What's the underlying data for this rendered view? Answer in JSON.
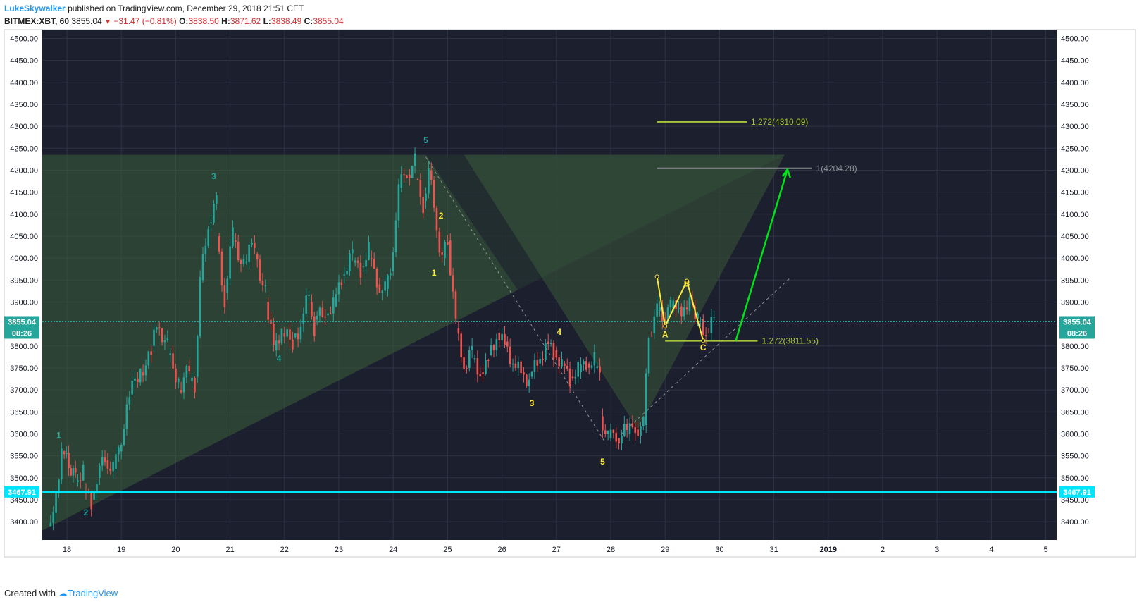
{
  "header": {
    "user": "LukeSkywalker",
    "published": "published on TradingView.com, December 29, 2018 21:51 CET",
    "symbol": "BITMEX:XBT, 60",
    "last": "3855.04",
    "change": "−31.47 (−0.81%)",
    "o_label": "O:",
    "o_value": "3838.50",
    "h_label": "H:",
    "h_value": "3871.62",
    "l_label": "L:",
    "l_value": "3838.49",
    "c_label": "C:",
    "c_value": "3855.04"
  },
  "footer": {
    "created_with": "Created with",
    "brand": "TradingView"
  },
  "colors": {
    "background": "#1c1f2e",
    "grid": "#2e3344",
    "up": "#26a69a",
    "down": "#ef5350",
    "wedge": "#3b5e3a",
    "cyan": "#00e5ff",
    "yellow": "#ffeb3b",
    "green": "#00e21a",
    "fib": "#a8c53a",
    "gray": "#8d9196"
  },
  "chart_data": {
    "type": "candlestick",
    "price_axis": [
      "4500.00",
      "4450.00",
      "4400.00",
      "4350.00",
      "4300.00",
      "4250.00",
      "4200.00",
      "4150.00",
      "4100.00",
      "4050.00",
      "4000.00",
      "3950.00",
      "3900.00",
      "3850.00",
      "3800.00",
      "3750.00",
      "3700.00",
      "3650.00",
      "3600.00",
      "3550.00",
      "3500.00",
      "3450.00",
      "3400.00",
      "3350.00"
    ],
    "ylim": [
      3320,
      4520
    ],
    "time_axis": [
      "18",
      "19",
      "20",
      "21",
      "22",
      "23",
      "24",
      "25",
      "26",
      "27",
      "28",
      "29",
      "30",
      "31",
      "2019",
      "2",
      "3",
      "4",
      "5"
    ],
    "time_axis_bold": [
      "2019"
    ],
    "current_price": {
      "label": "3855.04",
      "value": 3855.04,
      "countdown": "08:26"
    },
    "support_line": {
      "label": "3467.91",
      "value": 3467.91
    },
    "fib_levels": [
      {
        "label": "1.272(4310.09)",
        "value": 4310.09
      },
      {
        "label": "1(4204.28)",
        "value": 4204.28
      },
      {
        "label": "1.272(3811.55)",
        "value": 3811.55
      }
    ],
    "wave_labels_cyan": [
      {
        "text": "1",
        "day": 17.85,
        "price": 3590
      },
      {
        "text": "2",
        "day": 18.35,
        "price": 3415
      },
      {
        "text": "3",
        "day": 20.7,
        "price": 4180
      },
      {
        "text": "4",
        "day": 21.9,
        "price": 3765
      },
      {
        "text": "5",
        "day": 24.6,
        "price": 4262
      }
    ],
    "wave_labels_yellow": [
      {
        "text": "1",
        "day": 24.75,
        "price": 3960
      },
      {
        "text": "2",
        "day": 24.88,
        "price": 4090
      },
      {
        "text": "3",
        "day": 26.55,
        "price": 3663
      },
      {
        "text": "4",
        "day": 27.05,
        "price": 3825
      },
      {
        "text": "5",
        "day": 27.85,
        "price": 3530
      }
    ],
    "abc_labels": [
      {
        "text": "A",
        "day": 29.0,
        "price": 3820
      },
      {
        "text": "B",
        "day": 29.4,
        "price": 3935
      },
      {
        "text": "C",
        "day": 29.7,
        "price": 3790
      }
    ],
    "candles_sampled": [
      [
        17.7,
        3390,
        3405
      ],
      [
        17.8,
        3420,
        3560
      ],
      [
        17.95,
        3560,
        3500
      ],
      [
        18.2,
        3490,
        3520
      ],
      [
        18.35,
        3470,
        3440
      ],
      [
        18.5,
        3450,
        3500
      ],
      [
        18.6,
        3500,
        3550
      ],
      [
        18.75,
        3540,
        3520
      ],
      [
        18.9,
        3520,
        3560
      ],
      [
        19.0,
        3560,
        3680
      ],
      [
        19.2,
        3690,
        3750
      ],
      [
        19.4,
        3740,
        3780
      ],
      [
        19.6,
        3800,
        3860
      ],
      [
        19.75,
        3840,
        3800
      ],
      [
        19.9,
        3780,
        3720
      ],
      [
        20.1,
        3700,
        3750
      ],
      [
        20.3,
        3720,
        3700
      ],
      [
        20.4,
        3730,
        3950
      ],
      [
        20.5,
        3950,
        4080
      ],
      [
        20.65,
        4080,
        4130
      ],
      [
        20.8,
        4050,
        3900
      ],
      [
        20.95,
        3920,
        4060
      ],
      [
        21.1,
        4040,
        3980
      ],
      [
        21.3,
        3990,
        4040
      ],
      [
        21.5,
        4010,
        3920
      ],
      [
        21.7,
        3900,
        3800
      ],
      [
        21.85,
        3790,
        3840
      ],
      [
        22.0,
        3830,
        3810
      ],
      [
        22.2,
        3820,
        3840
      ],
      [
        22.35,
        3850,
        3920
      ],
      [
        22.5,
        3900,
        3840
      ],
      [
        22.6,
        3860,
        3880
      ],
      [
        22.8,
        3870,
        3900
      ],
      [
        22.95,
        3890,
        3950
      ],
      [
        23.1,
        3960,
        4010
      ],
      [
        23.3,
        3990,
        3970
      ],
      [
        23.45,
        3980,
        4020
      ],
      [
        23.6,
        4000,
        3950
      ],
      [
        23.75,
        3940,
        3930
      ],
      [
        23.9,
        3930,
        3960
      ],
      [
        24.0,
        3970,
        4150
      ],
      [
        24.15,
        4160,
        4200
      ],
      [
        24.3,
        4190,
        4220
      ],
      [
        24.45,
        4180,
        4120
      ],
      [
        24.6,
        4130,
        4200
      ],
      [
        24.7,
        4200,
        4080
      ],
      [
        24.85,
        4060,
        4000
      ],
      [
        24.95,
        4000,
        4040
      ],
      [
        25.05,
        4040,
        3850
      ],
      [
        25.2,
        3840,
        3760
      ],
      [
        25.35,
        3750,
        3790
      ],
      [
        25.5,
        3770,
        3740
      ],
      [
        25.65,
        3740,
        3760
      ],
      [
        25.8,
        3780,
        3820
      ],
      [
        25.95,
        3830,
        3800
      ],
      [
        26.1,
        3810,
        3760
      ],
      [
        26.25,
        3760,
        3740
      ],
      [
        26.4,
        3740,
        3720
      ],
      [
        26.55,
        3730,
        3760
      ],
      [
        26.7,
        3760,
        3800
      ],
      [
        26.85,
        3810,
        3780
      ],
      [
        27.0,
        3790,
        3760
      ],
      [
        27.15,
        3760,
        3720
      ],
      [
        27.3,
        3730,
        3750
      ],
      [
        27.45,
        3740,
        3760
      ],
      [
        27.6,
        3760,
        3770
      ],
      [
        27.75,
        3750,
        3730
      ],
      [
        27.85,
        3640,
        3590
      ],
      [
        28.0,
        3590,
        3600
      ],
      [
        28.15,
        3590,
        3610
      ],
      [
        28.35,
        3600,
        3620
      ],
      [
        28.5,
        3610,
        3620
      ],
      [
        28.65,
        3620,
        3820
      ],
      [
        28.75,
        3830,
        3880
      ],
      [
        28.9,
        3880,
        3860
      ],
      [
        29.0,
        3860,
        3890
      ],
      [
        29.15,
        3880,
        3900
      ],
      [
        29.3,
        3890,
        3870
      ],
      [
        29.45,
        3880,
        3910
      ],
      [
        29.55,
        3890,
        3860
      ],
      [
        29.65,
        3860,
        3830
      ],
      [
        29.8,
        3830,
        3860
      ]
    ]
  }
}
